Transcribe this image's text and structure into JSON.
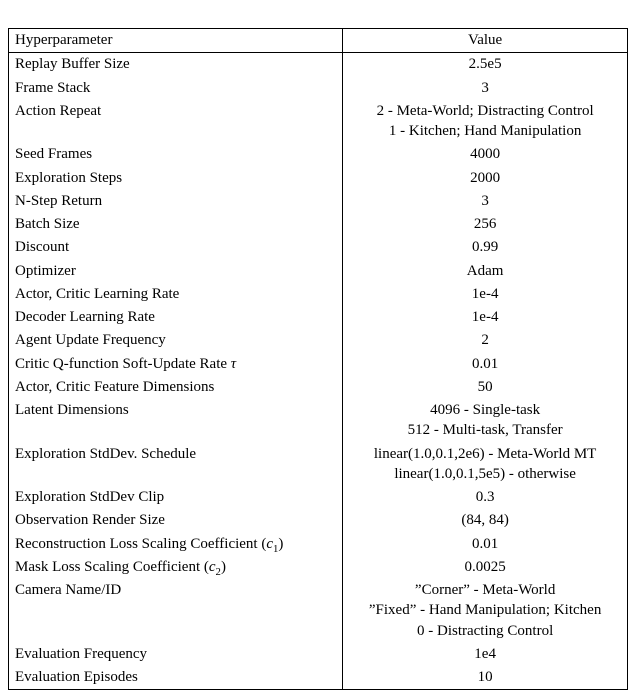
{
  "table": {
    "columns": [
      "Hyperparameter",
      "Value"
    ],
    "font_family": "Times New Roman",
    "font_size_pt": 11,
    "border_color": "#000000",
    "background_color": "#ffffff",
    "col_widths_pct": [
      54,
      46
    ],
    "rows": [
      {
        "label": "Replay Buffer Size",
        "values": [
          "2.5e5"
        ]
      },
      {
        "label": "Frame Stack",
        "values": [
          "3"
        ]
      },
      {
        "label": "Action Repeat",
        "values": [
          "2 - Meta-World; Distracting Control",
          "1 - Kitchen; Hand Manipulation"
        ]
      },
      {
        "label": "Seed Frames",
        "values": [
          "4000"
        ]
      },
      {
        "label": "Exploration Steps",
        "values": [
          "2000"
        ]
      },
      {
        "label": "N-Step Return",
        "values": [
          "3"
        ]
      },
      {
        "label": "Batch Size",
        "values": [
          "256"
        ]
      },
      {
        "label": "Discount",
        "values": [
          "0.99"
        ]
      },
      {
        "label": "Optimizer",
        "values": [
          "Adam"
        ]
      },
      {
        "label": "Actor, Critic Learning Rate",
        "values": [
          "1e-4"
        ]
      },
      {
        "label": "Decoder Learning Rate",
        "values": [
          "1e-4"
        ]
      },
      {
        "label": "Agent Update Frequency",
        "values": [
          "2"
        ]
      },
      {
        "label_html": "Critic Q-function Soft-Update Rate <i>τ</i>",
        "values": [
          "0.01"
        ]
      },
      {
        "label": "Actor, Critic Feature Dimensions",
        "values": [
          "50"
        ]
      },
      {
        "label": "Latent Dimensions",
        "values": [
          "4096 - Single-task",
          "512 - Multi-task, Transfer"
        ]
      },
      {
        "label": "Exploration StdDev. Schedule",
        "values": [
          "linear(1.0,0.1,2e6) - Meta-World MT",
          "linear(1.0,0.1,5e5) - otherwise"
        ]
      },
      {
        "label": "Exploration StdDev Clip",
        "values": [
          "0.3"
        ]
      },
      {
        "label": "Observation Render Size",
        "values": [
          "(84, 84)"
        ]
      },
      {
        "label_html": "Reconstruction Loss Scaling Coefficient (<i>c</i><sub>1</sub>)",
        "values": [
          "0.01"
        ]
      },
      {
        "label_html": "Mask Loss Scaling Coefficient (<i>c</i><sub>2</sub>)",
        "values": [
          "0.0025"
        ]
      },
      {
        "label": "Camera Name/ID",
        "values": [
          "”Corner” - Meta-World",
          "”Fixed” - Hand Manipulation; Kitchen",
          "0 - Distracting Control"
        ]
      },
      {
        "label": "Evaluation Frequency",
        "values": [
          "1e4"
        ]
      },
      {
        "label": "Evaluation Episodes",
        "values": [
          "10"
        ]
      }
    ]
  }
}
